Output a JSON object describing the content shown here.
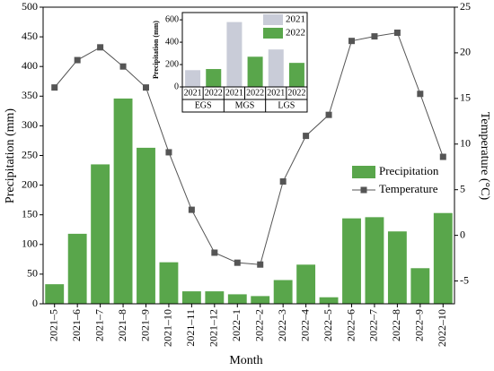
{
  "chart_data": [
    {
      "type": "bar",
      "xlabel": "Month",
      "ylabel": "Precipitation (mm)",
      "y2label": "Temperature (°C)",
      "categories": [
        "2021–5",
        "2021–6",
        "2021–7",
        "2021–8",
        "2021–9",
        "2021–10",
        "2021–11",
        "2021–12",
        "2022–1",
        "2022–2",
        "2022–3",
        "2022–4",
        "2022–5",
        "2022–6",
        "2022–7",
        "2022–8",
        "2022–9",
        "2022–10"
      ],
      "series": [
        {
          "name": "Precipitation",
          "type": "bar",
          "color": "#59a64b",
          "values": [
            33,
            118,
            235,
            346,
            263,
            70,
            21,
            21,
            16,
            13,
            40,
            66,
            11,
            144,
            146,
            122,
            60,
            153
          ]
        },
        {
          "name": "Temperature",
          "type": "line",
          "axis": "y2",
          "color": "#555555",
          "values": [
            16.2,
            19.2,
            20.6,
            18.5,
            16.2,
            9.1,
            2.8,
            -1.9,
            -3.0,
            -3.2,
            5.9,
            10.9,
            13.2,
            21.3,
            21.8,
            22.2,
            15.5,
            8.6
          ]
        }
      ],
      "ylim": [
        0,
        500
      ],
      "yticks": [
        0,
        50,
        100,
        150,
        200,
        250,
        300,
        350,
        400,
        450,
        500
      ],
      "y2lim": [
        -7.5,
        25
      ],
      "y2ticks": [
        -5,
        0,
        5,
        10,
        15,
        20,
        25
      ],
      "legend": "right"
    },
    {
      "type": "bar",
      "ylabel": "Precipitation (mm)",
      "categories": [
        "EGS",
        "MGS",
        "LGS"
      ],
      "series": [
        {
          "name": "2021",
          "color": "#c9ccd8",
          "values": [
            150,
            580,
            335
          ]
        },
        {
          "name": "2022",
          "color": "#59a64b",
          "values": [
            160,
            270,
            215
          ]
        }
      ],
      "ylim": [
        0,
        665
      ],
      "yticks": [
        0,
        200,
        400,
        600
      ],
      "legend": "upper right"
    }
  ]
}
